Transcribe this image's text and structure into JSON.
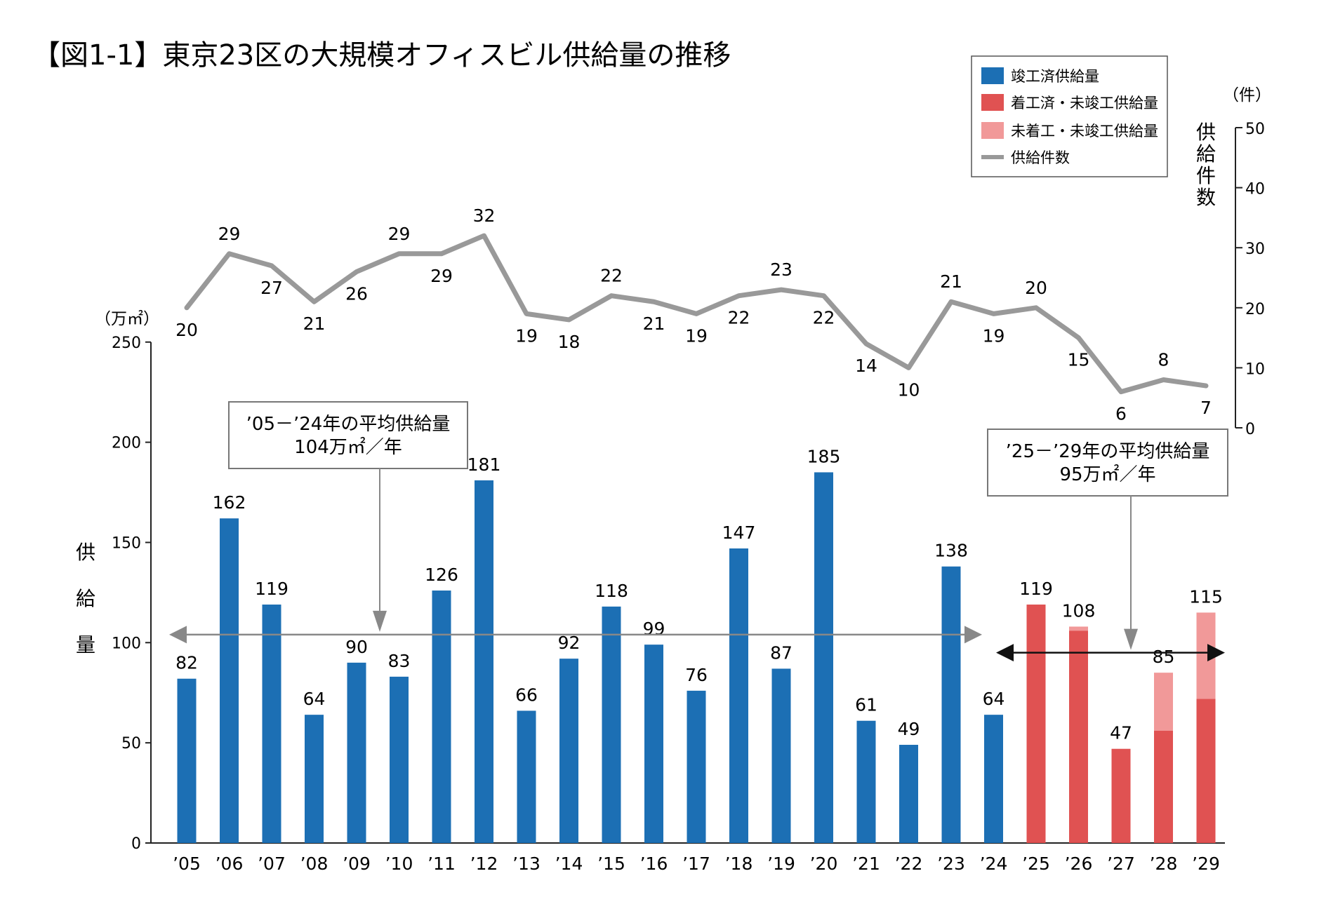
{
  "chart_data": {
    "type": "bar",
    "title": "【図1-1】東京23区の大規模オフィスビル供給量の推移",
    "categories": [
      "'05",
      "'06",
      "'07",
      "'08",
      "'09",
      "'10",
      "'11",
      "'12",
      "'13",
      "'14",
      "'15",
      "'16",
      "'17",
      "'18",
      "'19",
      "'20",
      "'21",
      "'22",
      "'23",
      "'24",
      "'25",
      "'26",
      "'27",
      "'28",
      "'29"
    ],
    "category_labels": [
      "’05",
      "’06",
      "’07",
      "’08",
      "’09",
      "’10",
      "’11",
      "’12",
      "’13",
      "’14",
      "’15",
      "’16",
      "’17",
      "’18",
      "’19",
      "’20",
      "’21",
      "’22",
      "’23",
      "’24",
      "’25",
      "’26",
      "’27",
      "’28",
      "’29"
    ],
    "series": [
      {
        "name": "竣工済供給量",
        "color": "#1c6fb4",
        "values": [
          82,
          162,
          119,
          64,
          90,
          83,
          126,
          181,
          66,
          92,
          118,
          99,
          76,
          147,
          87,
          185,
          61,
          49,
          138,
          64,
          0,
          0,
          0,
          0,
          0
        ]
      },
      {
        "name": "着工済・未竣工供給量",
        "color": "#e05252",
        "values": [
          0,
          0,
          0,
          0,
          0,
          0,
          0,
          0,
          0,
          0,
          0,
          0,
          0,
          0,
          0,
          0,
          0,
          0,
          0,
          0,
          119,
          106,
          47,
          56,
          72
        ]
      },
      {
        "name": "未着工・未竣工供給量",
        "color": "#f19999",
        "values": [
          0,
          0,
          0,
          0,
          0,
          0,
          0,
          0,
          0,
          0,
          0,
          0,
          0,
          0,
          0,
          0,
          0,
          0,
          0,
          0,
          0,
          2,
          0,
          29,
          43
        ]
      }
    ],
    "totals": [
      82,
      162,
      119,
      64,
      90,
      83,
      126,
      181,
      66,
      92,
      118,
      99,
      76,
      147,
      87,
      185,
      61,
      49,
      138,
      64,
      119,
      108,
      47,
      85,
      115
    ],
    "line_series": {
      "name": "供給件数",
      "color": "#999999",
      "values": [
        20,
        29,
        27,
        21,
        26,
        29,
        29,
        32,
        19,
        18,
        22,
        21,
        19,
        22,
        23,
        22,
        14,
        10,
        21,
        19,
        20,
        15,
        6,
        8,
        7
      ]
    },
    "y_left": {
      "label": "供給量",
      "unit": "（万㎡）",
      "ylim": [
        0,
        250
      ],
      "ticks": [
        0,
        50,
        100,
        150,
        200,
        250
      ]
    },
    "y_right": {
      "label": "供給件数",
      "unit": "（件）",
      "ylim": [
        0,
        50
      ],
      "ticks": [
        0,
        10,
        20,
        30,
        40,
        50
      ]
    },
    "averages": [
      {
        "text_line1": "’05－’24年の平均供給量",
        "text_line2": "104万㎡／年",
        "value": 104,
        "from": "'05",
        "to": "'24"
      },
      {
        "text_line1": "’25－’29年の平均供給量",
        "text_line2": "95万㎡／年",
        "value": 95,
        "from": "'25",
        "to": "'29"
      }
    ],
    "legend_position": "top-right"
  }
}
